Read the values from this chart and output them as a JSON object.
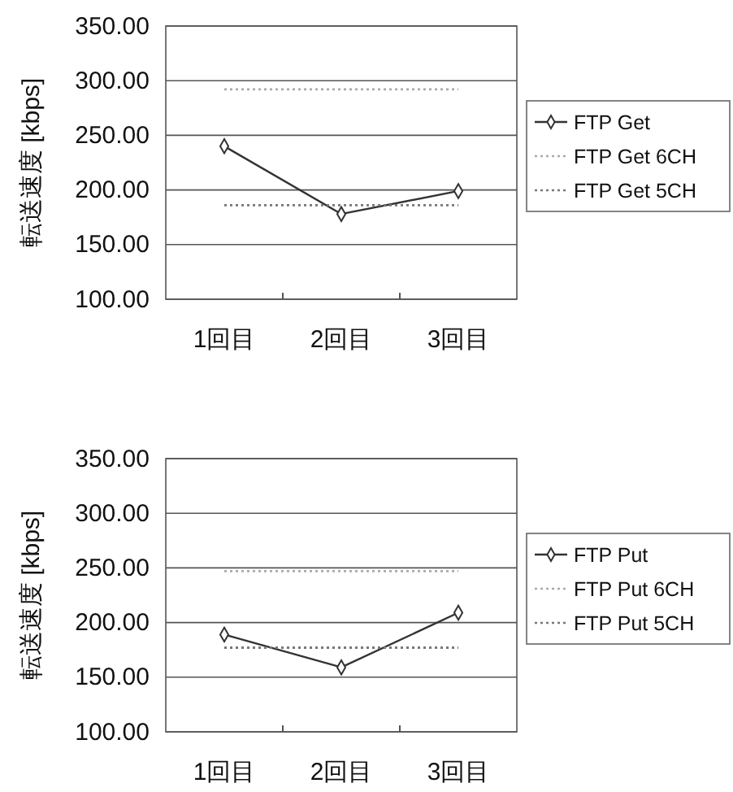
{
  "chart_data": [
    {
      "type": "line",
      "ylabel": "転送速度 [kbps]",
      "categories": [
        "1回目",
        "2回目",
        "3回目"
      ],
      "ylim": [
        100,
        350
      ],
      "yticks": [
        {
          "value": 100,
          "label": "100.00"
        },
        {
          "value": 150,
          "label": "150.00"
        },
        {
          "value": 200,
          "label": "200.00"
        },
        {
          "value": 250,
          "label": "250.00"
        },
        {
          "value": 300,
          "label": "300.00"
        },
        {
          "value": 350,
          "label": "350.00"
        }
      ],
      "grid": "y",
      "legend": "right",
      "series": [
        {
          "name": "FTP Get",
          "color": "#333333",
          "values": [
            240,
            178,
            199
          ],
          "marker": "diamond",
          "line_style": "solid"
        },
        {
          "name": "FTP Get 6CH",
          "color": "#aaaaaa",
          "values": [
            292,
            292,
            292
          ],
          "marker": "none",
          "line_style": "dotted"
        },
        {
          "name": "FTP Get 5CH",
          "color": "#777777",
          "values": [
            186,
            186,
            186
          ],
          "marker": "none",
          "line_style": "dotted"
        }
      ]
    },
    {
      "type": "line",
      "ylabel": "転送速度 [kbps]",
      "categories": [
        "1回目",
        "2回目",
        "3回目"
      ],
      "ylim": [
        100,
        350
      ],
      "yticks": [
        {
          "value": 100,
          "label": "100.00"
        },
        {
          "value": 150,
          "label": "150.00"
        },
        {
          "value": 200,
          "label": "200.00"
        },
        {
          "value": 250,
          "label": "250.00"
        },
        {
          "value": 300,
          "label": "300.00"
        },
        {
          "value": 350,
          "label": "350.00"
        }
      ],
      "grid": "y",
      "legend": "right",
      "series": [
        {
          "name": "FTP Put",
          "color": "#333333",
          "values": [
            189,
            159,
            209
          ],
          "marker": "diamond",
          "line_style": "solid"
        },
        {
          "name": "FTP Put 6CH",
          "color": "#aaaaaa",
          "values": [
            247,
            247,
            247
          ],
          "marker": "none",
          "line_style": "dotted"
        },
        {
          "name": "FTP Put 5CH",
          "color": "#777777",
          "values": [
            177,
            177,
            177
          ],
          "marker": "none",
          "line_style": "dotted"
        }
      ]
    }
  ]
}
